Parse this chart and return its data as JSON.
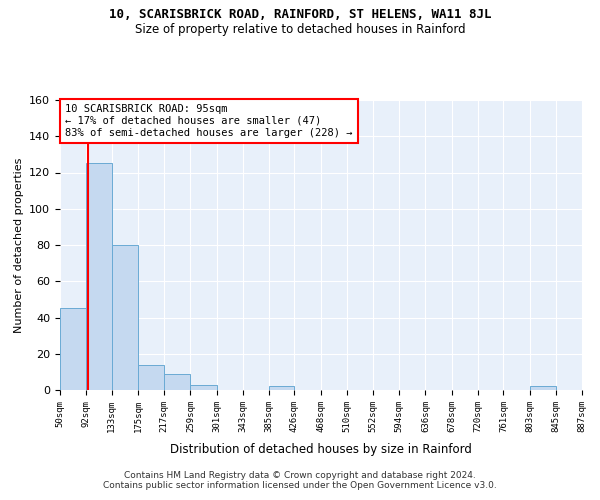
{
  "title1": "10, SCARISBRICK ROAD, RAINFORD, ST HELENS, WA11 8JL",
  "title2": "Size of property relative to detached houses in Rainford",
  "xlabel": "Distribution of detached houses by size in Rainford",
  "ylabel": "Number of detached properties",
  "bin_edges": [
    50,
    92,
    133,
    175,
    217,
    259,
    301,
    343,
    385,
    426,
    468,
    510,
    552,
    594,
    636,
    678,
    720,
    761,
    803,
    845,
    887
  ],
  "bar_heights": [
    45,
    125,
    80,
    14,
    9,
    3,
    0,
    0,
    2,
    0,
    0,
    0,
    0,
    0,
    0,
    0,
    0,
    0,
    2,
    0
  ],
  "bar_color": "#c5d9f0",
  "bar_edge_color": "#6aaad4",
  "background_color": "#e8f0fa",
  "grid_color": "#d0d8e8",
  "red_line_x": 95,
  "annotation_text": "10 SCARISBRICK ROAD: 95sqm\n← 17% of detached houses are smaller (47)\n83% of semi-detached houses are larger (228) →",
  "annotation_box_color": "white",
  "annotation_box_edge": "red",
  "ylim": [
    0,
    160
  ],
  "yticks": [
    0,
    20,
    40,
    60,
    80,
    100,
    120,
    140,
    160
  ],
  "footnote": "Contains HM Land Registry data © Crown copyright and database right 2024.\nContains public sector information licensed under the Open Government Licence v3.0.",
  "tick_labels": [
    "50sqm",
    "92sqm",
    "133sqm",
    "175sqm",
    "217sqm",
    "259sqm",
    "301sqm",
    "343sqm",
    "385sqm",
    "426sqm",
    "468sqm",
    "510sqm",
    "552sqm",
    "594sqm",
    "636sqm",
    "678sqm",
    "720sqm",
    "761sqm",
    "803sqm",
    "845sqm",
    "887sqm"
  ]
}
